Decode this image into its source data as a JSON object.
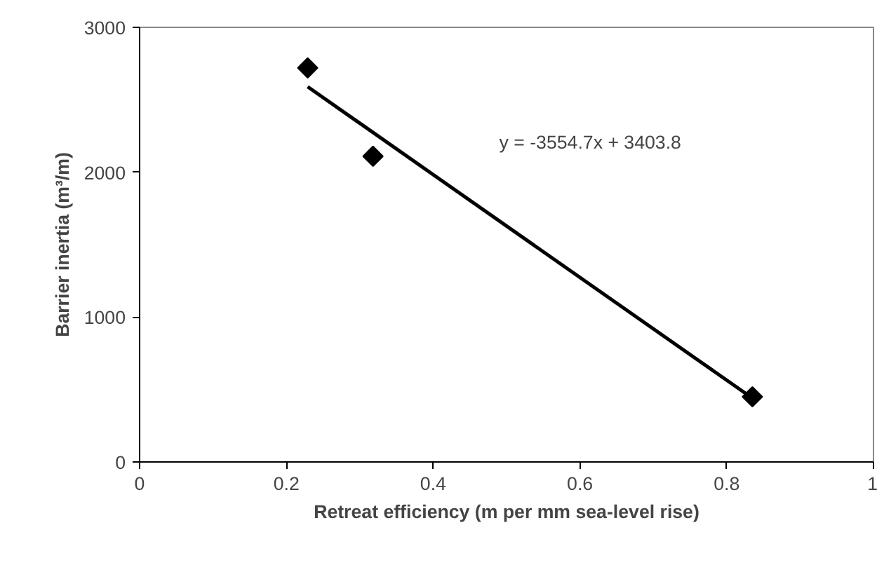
{
  "chart_data": {
    "type": "scatter",
    "xlabel": "Retreat efficiency (m per mm sea-level rise)",
    "ylabel": "Barrier inertia (m³/m)",
    "xlim": [
      0,
      1
    ],
    "xticks": [
      0,
      0.2,
      0.4,
      0.6,
      0.8,
      1
    ],
    "ylim": [
      0,
      3000
    ],
    "yticks": [
      0,
      1000,
      2000,
      3000
    ],
    "grid": false,
    "series": [
      {
        "color": "#000000",
        "marker": "diamond",
        "x": [
          0.229,
          0.318,
          0.835
        ],
        "values": [
          2720,
          2110,
          450
        ]
      },
      {
        "type": "line",
        "color": "#000000",
        "line_style": "solid",
        "x": [
          0.229,
          0.835
        ],
        "values": [
          2590,
          440
        ]
      }
    ],
    "annotations": [
      "y = -3554.7x + 3403.8"
    ]
  }
}
